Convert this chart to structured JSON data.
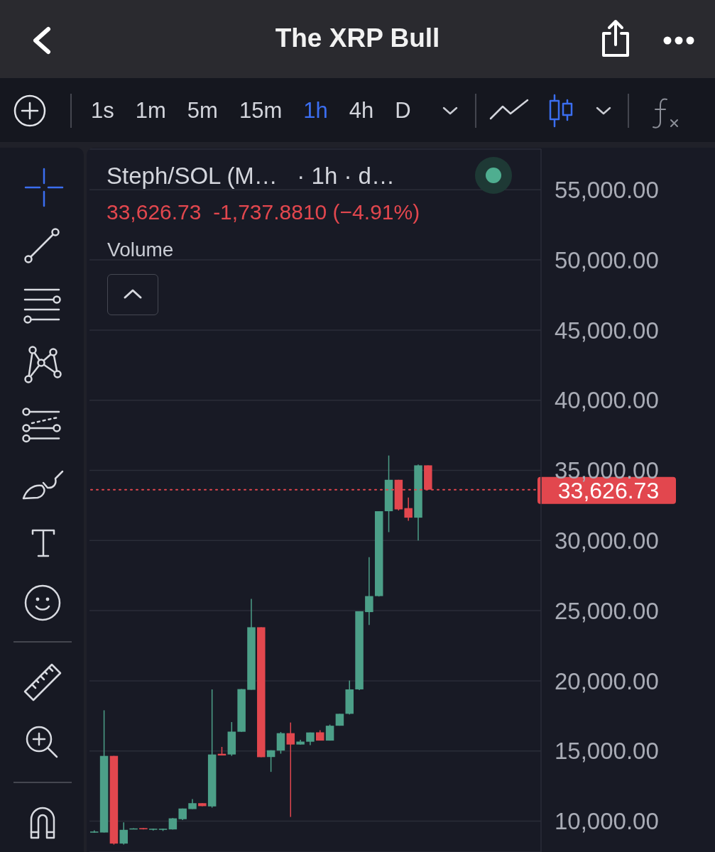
{
  "chart_data": {
    "type": "candlestick",
    "title": "The XRP Bull",
    "subtitle": "Steph/SOL (M…   · 1h · d…",
    "annotations": [
      "33,626.73  -1,737.8810 (−4.91%)",
      "Volume",
      "1s",
      "1m",
      "5m",
      "15m",
      "1h",
      "4h",
      "D"
    ],
    "categories": [
      null,
      null,
      null,
      null,
      null,
      null,
      null,
      null,
      null,
      null,
      null,
      null,
      null,
      null,
      null,
      null,
      null,
      null,
      null,
      null,
      null,
      null,
      null,
      null,
      null,
      null,
      null,
      null,
      null,
      null,
      null,
      null,
      null,
      null,
      null,
      null,
      null,
      null,
      null,
      null,
      null,
      null,
      null,
      null,
      null,
      null
    ],
    "ohlc": [
      [
        9180,
        9340,
        9170,
        9260
      ],
      [
        9190,
        17900,
        9190,
        14650
      ],
      [
        14650,
        14650,
        8330,
        8400
      ],
      [
        8400,
        9910,
        8330,
        9380
      ],
      [
        9430,
        9490,
        9420,
        9480
      ],
      [
        9500,
        9510,
        9410,
        9420
      ],
      [
        9390,
        9470,
        9330,
        9460
      ],
      [
        9380,
        9470,
        9300,
        9460
      ],
      [
        9410,
        10220,
        9400,
        10200
      ],
      [
        10140,
        10900,
        10080,
        10900
      ],
      [
        10860,
        11570,
        10860,
        11280
      ],
      [
        11280,
        11280,
        11060,
        11070
      ],
      [
        11050,
        19390,
        10960,
        14750
      ],
      [
        14800,
        15290,
        14680,
        14680
      ],
      [
        14750,
        17060,
        14650,
        16380
      ],
      [
        16370,
        19410,
        16370,
        19410
      ],
      [
        19360,
        25840,
        19360,
        23820
      ],
      [
        23820,
        23820,
        14560,
        14560
      ],
      [
        14570,
        15050,
        13510,
        15050
      ],
      [
        15030,
        16350,
        14810,
        16270
      ],
      [
        16270,
        17030,
        10300,
        15460
      ],
      [
        15460,
        15790,
        15460,
        15670
      ],
      [
        15660,
        16320,
        15420,
        16320
      ],
      [
        16330,
        16480,
        15740,
        15740
      ],
      [
        15740,
        16880,
        15740,
        16800
      ],
      [
        16800,
        17650,
        16800,
        17650
      ],
      [
        17650,
        20020,
        17610,
        19390
      ],
      [
        19390,
        24960,
        19340,
        24960
      ],
      [
        24900,
        28810,
        23980,
        26040
      ],
      [
        26040,
        32090,
        26010,
        32090
      ],
      [
        32090,
        36060,
        30600,
        34330
      ],
      [
        34330,
        34330,
        32140,
        32220
      ],
      [
        32310,
        33070,
        31410,
        31630
      ],
      [
        31630,
        35420,
        30000,
        35360
      ],
      [
        35360,
        35360,
        33626.73,
        33626.73
      ],
      null,
      null,
      null,
      null,
      null,
      null,
      null,
      null,
      null,
      null,
      null
    ],
    "colors": [
      "#4c9f88",
      "#4c9f88",
      "#e2474e",
      "#4c9f88",
      "#4c9f88",
      "#e2474e",
      "#4c9f88",
      "#4c9f88",
      "#4c9f88",
      "#4c9f88",
      "#4c9f88",
      "#e2474e",
      "#4c9f88",
      "#e2474e",
      "#4c9f88",
      "#4c9f88",
      "#4c9f88",
      "#e2474e",
      "#4c9f88",
      "#4c9f88",
      "#e2474e",
      "#4c9f88",
      "#4c9f88",
      "#e2474e",
      "#4c9f88",
      "#4c9f88",
      "#4c9f88",
      "#4c9f88",
      "#4c9f88",
      "#4c9f88",
      "#4c9f88",
      "#e2474e",
      "#e2474e",
      "#4c9f88",
      "#e2474e",
      null,
      null,
      null,
      null,
      null,
      null,
      null,
      null,
      null,
      null,
      null
    ],
    "ylim": [
      7800,
      57900
    ],
    "yticks": [
      {
        "value": 10000,
        "label": "10,000.00"
      },
      {
        "value": 15000,
        "label": "15,000.00"
      },
      {
        "value": 20000,
        "label": "20,000.00"
      },
      {
        "value": 25000,
        "label": "25,000.00"
      },
      {
        "value": 30000,
        "label": "30,000.00"
      },
      {
        "value": 35000,
        "label": "35,000.00"
      },
      {
        "value": 40000,
        "label": "40,000.00"
      },
      {
        "value": 45000,
        "label": "45,000.00"
      },
      {
        "value": 50000,
        "label": "50,000.00"
      },
      {
        "value": 55000,
        "label": "55,000.00"
      }
    ],
    "grid": "y",
    "ref_lines": [
      {
        "axis": "y",
        "value": 33626.73,
        "label": "33,626.73",
        "color": "#e2474e",
        "line_style": "dotted"
      }
    ]
  }
}
